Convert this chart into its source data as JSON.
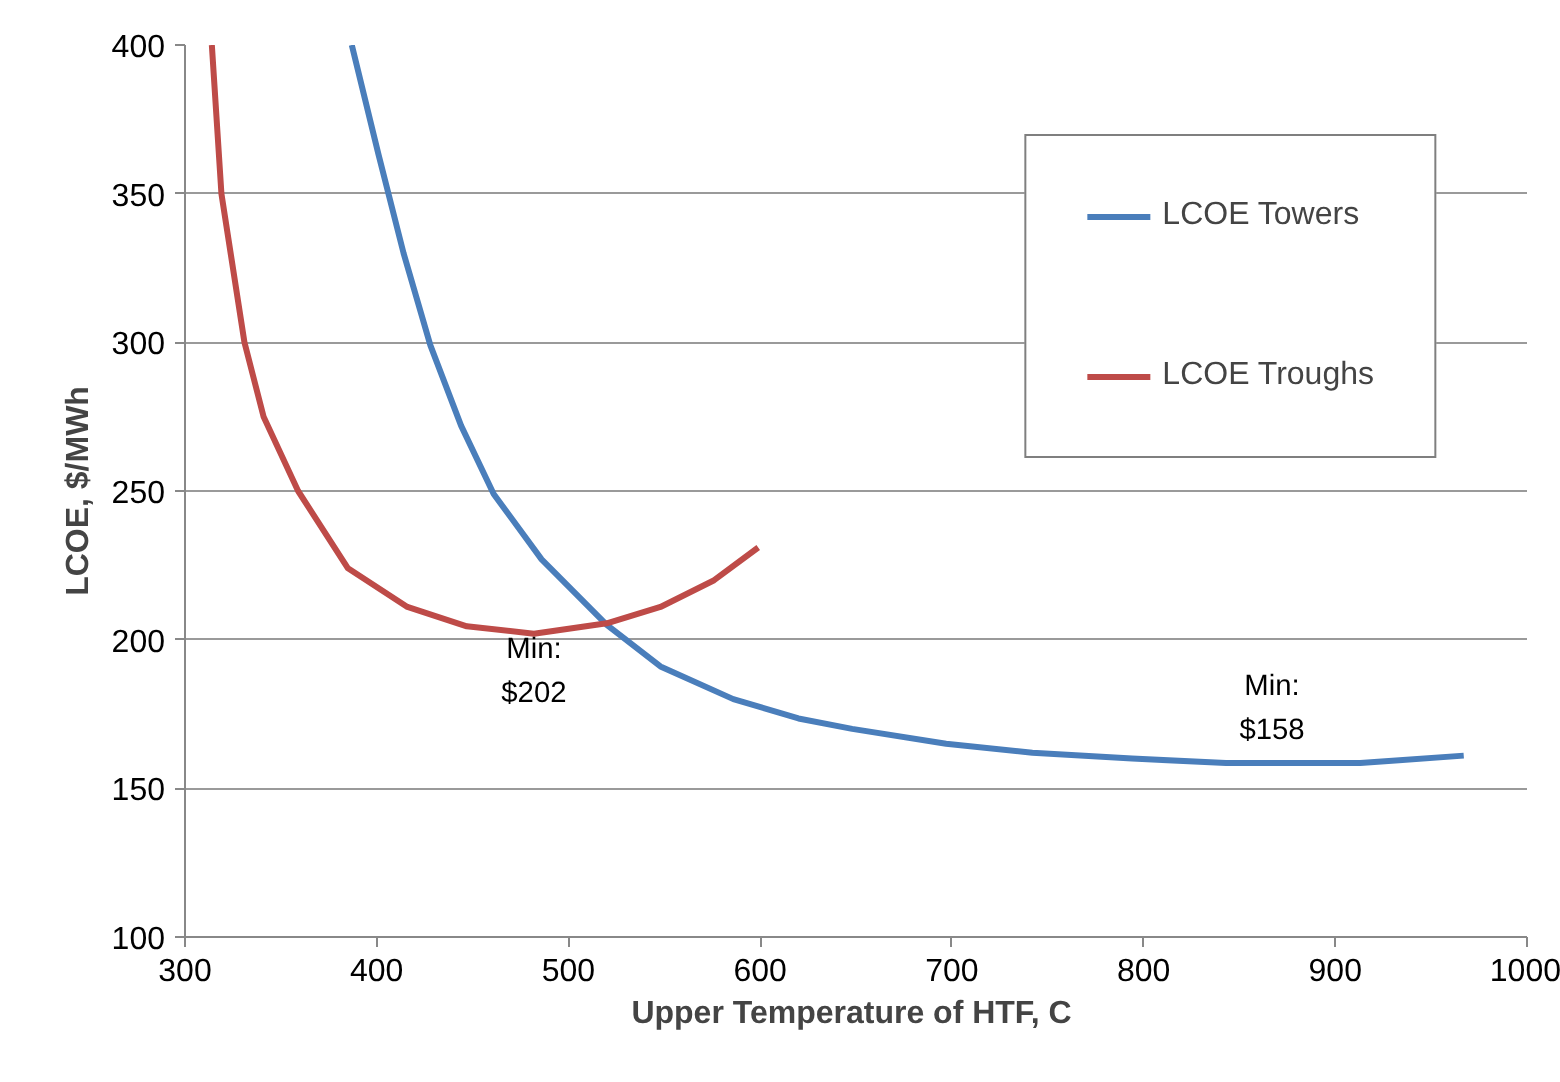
{
  "chart_data": {
    "type": "line",
    "xlabel": "Upper Temperature of HTF,  C",
    "ylabel": "LCOE, $/MWh",
    "xlim": [
      300,
      1000
    ],
    "xticks": [
      300,
      400,
      500,
      600,
      700,
      800,
      900,
      1000
    ],
    "ylim": [
      100,
      400
    ],
    "yticks": [
      100,
      150,
      200,
      250,
      300,
      350,
      400
    ],
    "grid": "y",
    "legend": "top right",
    "line_style": "solid",
    "marker": "none",
    "series": [
      {
        "name": "LCOE Towers",
        "color": "#4a7ebb",
        "x": [
          387,
          401,
          414,
          428,
          444,
          461,
          486,
          520,
          548,
          586,
          620,
          648,
          697,
          742,
          794,
          843,
          913,
          967
        ],
        "values": [
          400,
          363,
          330,
          299,
          272,
          249,
          227,
          205,
          191,
          180,
          173.5,
          170,
          165,
          162,
          160,
          158.5,
          158.5,
          161
        ]
      },
      {
        "name": "LCOE Troughs",
        "color": "#be4b48",
        "x": [
          314,
          319,
          331,
          341,
          359,
          385,
          416,
          447,
          482,
          520,
          548,
          576,
          599
        ],
        "values": [
          400,
          350,
          300,
          275,
          250,
          224,
          211,
          204.5,
          202,
          205.5,
          211,
          220,
          231
        ]
      }
    ],
    "annotations": [
      {
        "text": "Min:\n$202",
        "x": 482,
        "y": 202
      },
      {
        "text": "Min:\n$158",
        "x": 867,
        "y": 158.5
      }
    ]
  }
}
